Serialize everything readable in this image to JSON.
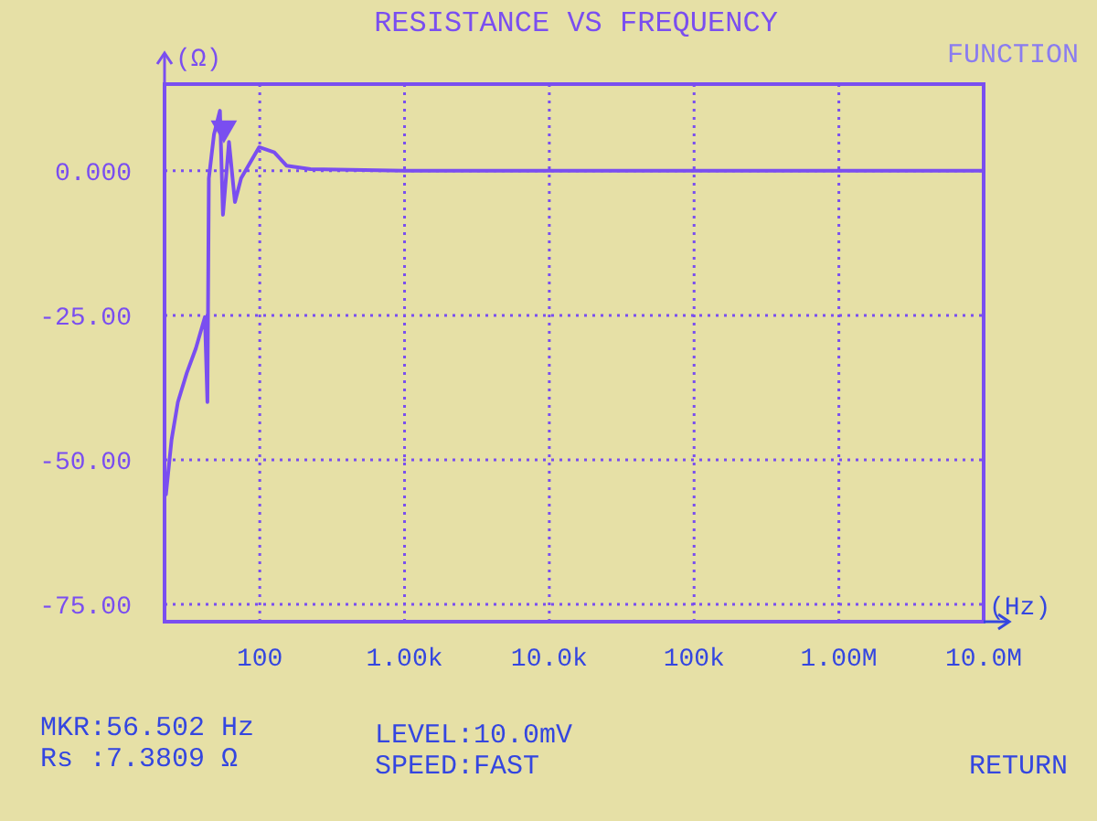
{
  "chart_data": {
    "type": "line",
    "title": "RESISTANCE VS FREQUENCY",
    "xlabel": "(Hz)",
    "ylabel": "(Ω)",
    "log": "x",
    "grid": true,
    "line_style": "solid",
    "xlim": [
      22,
      10000000
    ],
    "ylim": [
      -78,
      15
    ],
    "xticks": [
      {
        "value": 100,
        "label": "100"
      },
      {
        "value": 1000,
        "label": "1.00k"
      },
      {
        "value": 10000,
        "label": "10.0k"
      },
      {
        "value": 100000,
        "label": "100k"
      },
      {
        "value": 1000000,
        "label": "1.00M"
      },
      {
        "value": 10000000,
        "label": "10.0M"
      }
    ],
    "yticks": [
      {
        "value": 0,
        "label": "0.000"
      },
      {
        "value": -25,
        "label": "-25.00"
      },
      {
        "value": -50,
        "label": "-50.00"
      },
      {
        "value": -75,
        "label": "-75.00"
      }
    ],
    "series": [
      {
        "color": "#7a4ef0",
        "x": [
          22.5,
          24.6,
          27.2,
          31.3,
          36.2,
          41.8,
          43.5,
          44.5,
          48.3,
          53.1,
          55.7,
          61.3,
          67.4,
          74.3,
          99,
          126,
          153,
          224,
          1000,
          10000,
          100000,
          1000000,
          10000000
        ],
        "values": [
          -56,
          -46.5,
          -40,
          -35,
          -30.7,
          -25.3,
          -40,
          -1.3,
          6.3,
          10.4,
          -7.6,
          5,
          -5.4,
          -1.3,
          4.1,
          3.2,
          0.9,
          0.3,
          0,
          0,
          0,
          0,
          0
        ]
      },
      {
        "type": "scatter",
        "color": "#7a4ef0",
        "marker": "triangle",
        "x": [
          56.502
        ],
        "values": [
          7.4
        ]
      }
    ],
    "annotations": [
      "FUNCTION",
      "MKR:56.502 Hz",
      "Rs :7.3809 Ω",
      "LEVEL:10.0mV",
      "SPEED:FAST",
      "RETURN"
    ]
  }
}
